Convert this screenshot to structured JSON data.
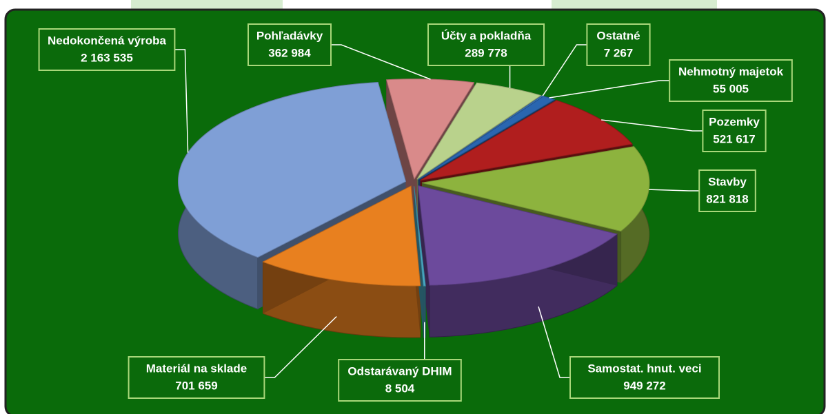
{
  "chart_data": {
    "type": "pie",
    "categories": [
      "Pohľadávky",
      "Účty a pokladňa",
      "Ostatné",
      "Nehmotný majetok",
      "Pozemky",
      "Stavby",
      "Samostat. hnut. veci",
      "Odstarávaný DHIM",
      "Materiál na sklade",
      "Nedokončená výroba"
    ],
    "values": [
      362984,
      289778,
      7267,
      55005,
      521617,
      821818,
      949272,
      8504,
      701659,
      2163535
    ],
    "value_labels": [
      "362 984",
      "289 778",
      "7 267",
      "55 005",
      "521 617",
      "821 818",
      "949 272",
      "8 504",
      "701 659",
      "2 163 535"
    ],
    "colors": [
      "#d98a8a",
      "#b9d28c",
      "#3f7cc4",
      "#2a66b0",
      "#b01e1e",
      "#8db33e",
      "#6c4a9c",
      "#49a9c4",
      "#e8801f",
      "#7f9fd6"
    ]
  }
}
